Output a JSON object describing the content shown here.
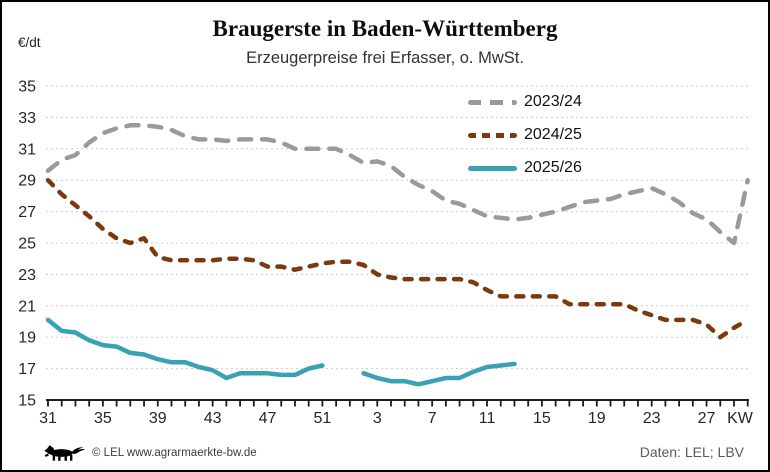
{
  "header": {
    "title": "Braugerste in Baden-Württemberg",
    "subtitle": "Erzeugerpreise frei Erfasser, o. MwSt.",
    "unit_label": "€/dt"
  },
  "footer": {
    "copyright": "© LEL www.agrarmaerkte-bw.de",
    "source": "Daten: LEL; LBV",
    "logo": "bw-lion-logo"
  },
  "colors": {
    "series_2023_24": "#9a9a9a",
    "series_2024_25": "#7a3a0d",
    "series_2025_26": "#38a2b4",
    "gridline": "#cdcdcd",
    "axis": "#1c1c1c"
  },
  "chart_data": {
    "type": "line",
    "title": "Braugerste in Baden-Württemberg",
    "subtitle": "Erzeugerpreise frei Erfasser, o. MwSt.",
    "ylabel": "€/dt",
    "x_unit_label": "KW",
    "ylim": [
      15,
      35
    ],
    "ytick_step": 2,
    "grid": "horizontal-dashed",
    "legend_position": "top-right",
    "x_categories": [
      "31",
      "32",
      "33",
      "34",
      "35",
      "36",
      "37",
      "38",
      "39",
      "40",
      "41",
      "42",
      "43",
      "44",
      "45",
      "46",
      "47",
      "48",
      "49",
      "50",
      "51",
      "52",
      "1",
      "2",
      "3",
      "4",
      "5",
      "6",
      "7",
      "8",
      "9",
      "10",
      "11",
      "12",
      "13",
      "14",
      "15",
      "16",
      "17",
      "18",
      "19",
      "20",
      "21",
      "22",
      "23",
      "24",
      "25",
      "26",
      "27",
      "28",
      "29",
      "30"
    ],
    "x_tick_labels": [
      "31",
      "35",
      "39",
      "43",
      "47",
      "51",
      "3",
      "7",
      "11",
      "15",
      "19",
      "23",
      "27"
    ],
    "series": [
      {
        "name": "2023/24",
        "color": "#9a9a9a",
        "style": "dashed-long",
        "values": [
          29.6,
          30.3,
          30.6,
          31.4,
          32.0,
          32.3,
          32.5,
          32.5,
          32.4,
          32.2,
          31.8,
          31.6,
          31.6,
          31.5,
          31.6,
          31.6,
          31.6,
          31.4,
          31.0,
          31.0,
          31.0,
          31.0,
          30.6,
          30.1,
          30.2,
          29.9,
          29.2,
          28.7,
          28.3,
          27.7,
          27.5,
          27.1,
          26.7,
          26.6,
          26.5,
          26.6,
          26.8,
          27.0,
          27.3,
          27.6,
          27.7,
          27.8,
          28.1,
          28.3,
          28.5,
          28.1,
          27.6,
          26.9,
          26.5,
          25.7,
          25.0,
          29.0
        ]
      },
      {
        "name": "2024/25",
        "color": "#7a3a0d",
        "style": "dashed-short",
        "values": [
          29.0,
          28.1,
          27.4,
          26.7,
          25.9,
          25.3,
          25.0,
          25.3,
          24.1,
          23.9,
          23.9,
          23.9,
          23.9,
          24.0,
          24.0,
          23.9,
          23.5,
          23.5,
          23.3,
          23.5,
          23.7,
          23.8,
          23.8,
          23.6,
          23.0,
          22.8,
          22.7,
          22.7,
          22.7,
          22.7,
          22.7,
          22.5,
          22.0,
          21.6,
          21.6,
          21.6,
          21.6,
          21.6,
          21.1,
          21.1,
          21.1,
          21.1,
          21.1,
          20.7,
          20.4,
          20.1,
          20.1,
          20.1,
          19.8,
          19.0,
          19.6,
          20.1
        ]
      },
      {
        "name": "2025/26",
        "color": "#38a2b4",
        "style": "solid",
        "values": [
          20.1,
          19.4,
          19.3,
          18.8,
          18.5,
          18.4,
          18.0,
          17.9,
          17.6,
          17.4,
          17.4,
          17.1,
          16.9,
          16.4,
          16.7,
          16.7,
          16.7,
          16.6,
          16.6,
          17.0,
          17.2,
          null,
          null,
          16.7,
          16.4,
          16.2,
          16.2,
          16.0,
          16.2,
          16.4,
          16.4,
          16.8,
          17.1,
          17.2,
          17.3,
          null,
          null,
          null,
          null,
          null,
          null,
          null,
          null,
          null,
          null,
          null,
          null,
          null,
          null,
          null,
          null,
          null
        ]
      }
    ]
  }
}
